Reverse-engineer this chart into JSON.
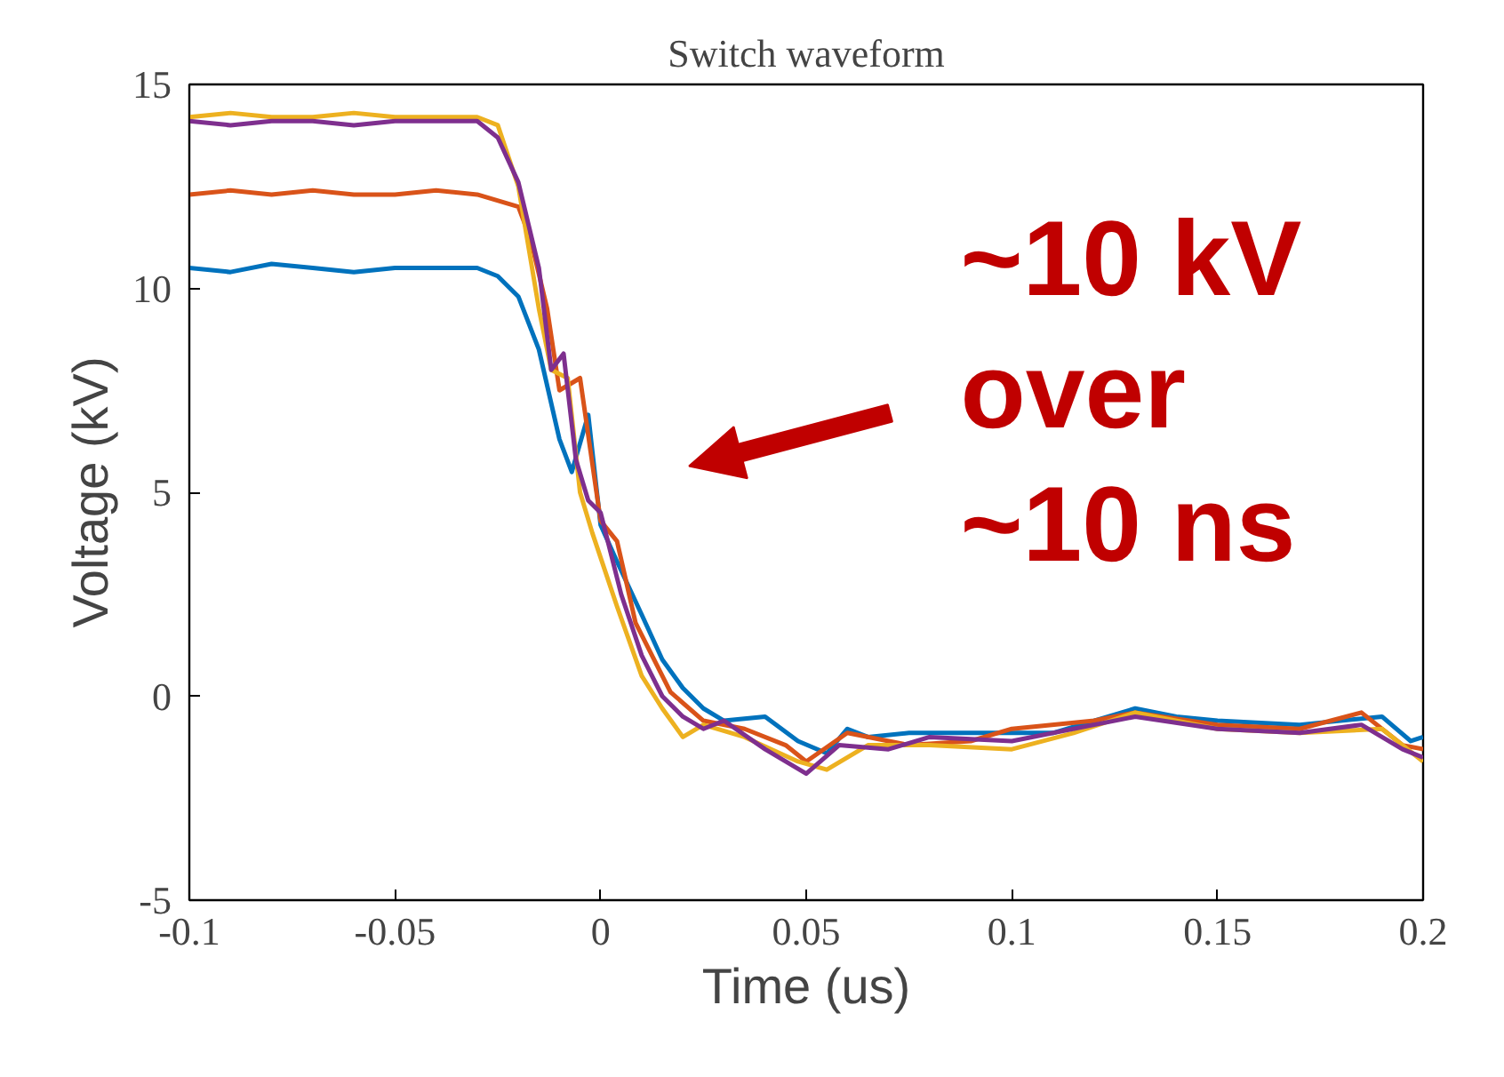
{
  "chart_data": {
    "type": "line",
    "title": "Switch waveform",
    "xlabel": "Time (us)",
    "ylabel": "Voltage (kV)",
    "xlim": [
      -0.1,
      0.2
    ],
    "ylim": [
      -5,
      15
    ],
    "xticks": [
      -0.1,
      -0.05,
      0,
      0.05,
      0.1,
      0.15,
      0.2
    ],
    "yticks": [
      -5,
      0,
      5,
      10,
      15
    ],
    "grid": false,
    "marker": "none",
    "line_style": "solid",
    "annotations": [
      "~10 kV\nover\n~10 ns"
    ],
    "series": [
      {
        "color": "#0072bd",
        "x": [
          -0.1,
          -0.09,
          -0.08,
          -0.07,
          -0.06,
          -0.05,
          -0.04,
          -0.03,
          -0.025,
          -0.02,
          -0.015,
          -0.01,
          -0.007,
          -0.003,
          0,
          0.004,
          0.01,
          0.015,
          0.02,
          0.025,
          0.03,
          0.04,
          0.048,
          0.055,
          0.06,
          0.065,
          0.075,
          0.09,
          0.11,
          0.13,
          0.14,
          0.15,
          0.17,
          0.19,
          0.197,
          0.2
        ],
        "values": [
          10.5,
          10.4,
          10.6,
          10.5,
          10.4,
          10.5,
          10.5,
          10.5,
          10.3,
          9.8,
          8.5,
          6.3,
          5.5,
          6.9,
          4.2,
          3.3,
          2.0,
          0.9,
          0.2,
          -0.3,
          -0.6,
          -0.5,
          -1.1,
          -1.4,
          -0.8,
          -1.0,
          -0.9,
          -0.9,
          -0.9,
          -0.3,
          -0.5,
          -0.6,
          -0.7,
          -0.5,
          -1.1,
          -1.0
        ]
      },
      {
        "color": "#d95319",
        "x": [
          -0.1,
          -0.09,
          -0.08,
          -0.07,
          -0.06,
          -0.05,
          -0.04,
          -0.03,
          -0.02,
          -0.017,
          -0.013,
          -0.01,
          -0.005,
          0,
          0.004,
          0.0085,
          0.017,
          0.025,
          0.035,
          0.045,
          0.05,
          0.06,
          0.075,
          0.09,
          0.1,
          0.12,
          0.13,
          0.15,
          0.17,
          0.185,
          0.195,
          0.2
        ],
        "values": [
          12.3,
          12.4,
          12.3,
          12.4,
          12.3,
          12.3,
          12.4,
          12.3,
          12.0,
          11.2,
          9.5,
          7.5,
          7.8,
          4.3,
          3.8,
          1.8,
          0.1,
          -0.6,
          -0.8,
          -1.2,
          -1.6,
          -0.9,
          -1.2,
          -1.1,
          -0.8,
          -0.6,
          -0.4,
          -0.7,
          -0.8,
          -0.4,
          -1.2,
          -1.3
        ]
      },
      {
        "color": "#edb120",
        "x": [
          -0.1,
          -0.09,
          -0.08,
          -0.07,
          -0.06,
          -0.05,
          -0.04,
          -0.03,
          -0.025,
          -0.02,
          -0.015,
          -0.012,
          -0.008,
          -0.005,
          -0.002,
          0.004,
          0.01,
          0.015,
          0.02,
          0.025,
          0.035,
          0.048,
          0.055,
          0.065,
          0.08,
          0.1,
          0.115,
          0.13,
          0.15,
          0.17,
          0.19,
          0.2
        ],
        "values": [
          14.2,
          14.3,
          14.2,
          14.2,
          14.3,
          14.2,
          14.2,
          14.2,
          14.0,
          12.5,
          9.5,
          8.0,
          7.8,
          5.0,
          4.0,
          2.2,
          0.5,
          -0.3,
          -1.0,
          -0.7,
          -1.0,
          -1.6,
          -1.8,
          -1.2,
          -1.2,
          -1.3,
          -0.9,
          -0.4,
          -0.8,
          -0.9,
          -0.8,
          -1.6
        ]
      },
      {
        "color": "#7e2f8e",
        "x": [
          -0.1,
          -0.09,
          -0.08,
          -0.07,
          -0.06,
          -0.05,
          -0.04,
          -0.03,
          -0.025,
          -0.02,
          -0.015,
          -0.012,
          -0.009,
          -0.006,
          -0.003,
          0,
          0.005,
          0.01,
          0.015,
          0.02,
          0.025,
          0.03,
          0.04,
          0.05,
          0.058,
          0.07,
          0.08,
          0.1,
          0.12,
          0.13,
          0.15,
          0.17,
          0.185,
          0.195,
          0.2
        ],
        "values": [
          14.1,
          14.0,
          14.1,
          14.1,
          14.0,
          14.1,
          14.1,
          14.1,
          13.7,
          12.6,
          10.5,
          8.0,
          8.4,
          5.8,
          4.8,
          4.5,
          2.5,
          1.0,
          0.0,
          -0.5,
          -0.8,
          -0.6,
          -1.3,
          -1.9,
          -1.2,
          -1.3,
          -1.0,
          -1.1,
          -0.7,
          -0.5,
          -0.8,
          -0.9,
          -0.7,
          -1.3,
          -1.5
        ]
      }
    ]
  }
}
